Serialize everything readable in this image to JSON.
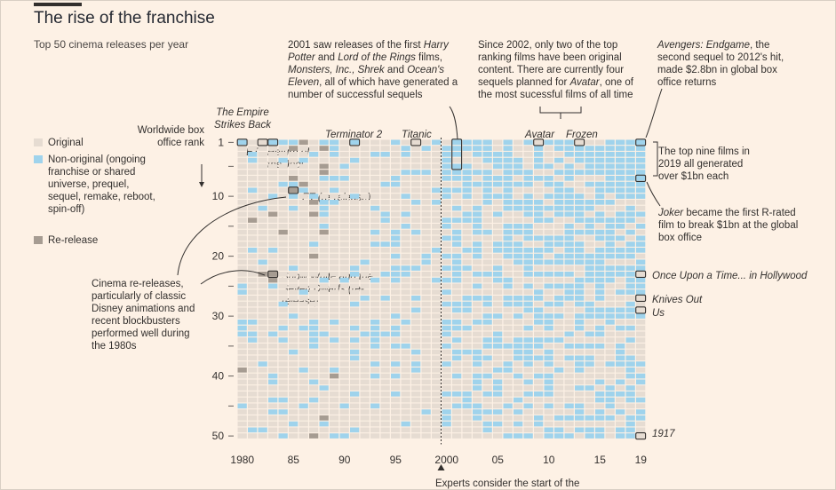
{
  "title": "The rise of the franchise",
  "subtitle": "Top 50 cinema releases per year",
  "legend": {
    "items": [
      {
        "label": "Original",
        "color": "#e6dcd2"
      },
      {
        "label": "Non-original (ongoing franchise or shared universe, prequel, sequel, remake, reboot, spin-off)",
        "color": "#9fd3ec"
      },
      {
        "label": "Re-release",
        "color": "#a69c92"
      }
    ]
  },
  "annotations": {
    "rank_axis_title": "Worldwide box office rank",
    "note_2001": {
      "p1": "2001 saw releases of the first ",
      "i1": "Harry Potter",
      "p2": " and ",
      "i2": "Lord of the Rings",
      "p3": " films, ",
      "i3": "Monsters, Inc., Shrek",
      "p4": " and ",
      "i4": "Ocean's Eleven",
      "p5": ", all of which have generated a number of successful sequels"
    },
    "note_2002": {
      "p1": "Since 2002, only two of the top ranking films have been original content. There are currently four sequels planned for ",
      "i1": "Avatar",
      "p2": ", one of the most sucessful films of all time"
    },
    "note_endgame": {
      "i1": "Avengers: Endgame",
      "p1": ", the second sequel to 2012's hit, made $2.8bn in global box office returns"
    },
    "note_top9": "The top nine films in 2019 all generated over $1bn each",
    "note_joker": {
      "i1": "Joker",
      "p1": " became the first R-rated film to break $1bn at the global box office"
    },
    "note_rereleases": "Cinema re-releases, particularly of classic Disney animations and recent blockbusters performed well during the 1980s",
    "footer": "Experts consider the start of the"
  },
  "film_labels": {
    "empire": "The Empire Strikes Back",
    "et": "ET",
    "jedi": "Return of the Jedi",
    "terminator": "Terminator 2",
    "titanic": "Titanic",
    "avatar": "Avatar",
    "frozen": "Frozen",
    "et_rerelease": "ET (re-release)",
    "snow_white": "Snow White and the Seven Dwarfs (re-release)",
    "once_upon": "Once Upon a Time... in Hollywood",
    "knives_out": "Knives Out",
    "us": "Us",
    "film_1917": "1917"
  },
  "chart_data": {
    "type": "heatmap",
    "title": "The rise of the franchise",
    "subtitle": "Top 50 cinema releases per year",
    "xlabel": "",
    "ylabel": "Worldwide box office rank",
    "x_range": [
      1980,
      2019
    ],
    "y_range": [
      1,
      50
    ],
    "x_tick_labels": [
      "1980",
      "85",
      "90",
      "95",
      "2000",
      "05",
      "10",
      "15",
      "19"
    ],
    "x_tick_years": [
      1980,
      1985,
      1990,
      1995,
      2000,
      2005,
      2010,
      2015,
      2019
    ],
    "y_tick_labels": [
      "1",
      "10",
      "20",
      "30",
      "40",
      "50"
    ],
    "y_ticks": [
      1,
      5,
      10,
      15,
      20,
      25,
      30,
      35,
      40,
      45,
      50
    ],
    "categories": [
      "Original",
      "Non-original",
      "Re-release"
    ],
    "colors": {
      "Original": "#e6dcd2",
      "Non-original": "#9fd3ec",
      "Re-release": "#a69c92"
    },
    "cells_note": "Grid of 40 years x 50 ranks; each cell is categorised as Original, Non-original or Re-release.",
    "notable_films": [
      {
        "film": "The Empire Strikes Back",
        "year": 1980,
        "rank": 1,
        "category": "Non-original"
      },
      {
        "film": "ET",
        "year": 1982,
        "rank": 1,
        "category": "Original"
      },
      {
        "film": "Return of the Jedi",
        "year": 1983,
        "rank": 1,
        "category": "Non-original"
      },
      {
        "film": "ET (re-release)",
        "year": 1985,
        "rank": 9,
        "category": "Re-release"
      },
      {
        "film": "Snow White and the Seven Dwarfs (re-release)",
        "year": 1983,
        "rank": 23,
        "category": "Re-release"
      },
      {
        "film": "Terminator 2",
        "year": 1991,
        "rank": 1,
        "category": "Non-original"
      },
      {
        "film": "Titanic",
        "year": 1997,
        "rank": 1,
        "category": "Original"
      },
      {
        "film": "Harry Potter and the Sorcerer's Stone",
        "year": 2001,
        "rank": 1,
        "category": "Non-original"
      },
      {
        "film": "Avatar",
        "year": 2009,
        "rank": 1,
        "category": "Original"
      },
      {
        "film": "Frozen",
        "year": 2013,
        "rank": 1,
        "category": "Original"
      },
      {
        "film": "Avengers: Endgame",
        "year": 2019,
        "rank": 1,
        "category": "Non-original"
      },
      {
        "film": "Joker",
        "year": 2019,
        "rank": 7,
        "category": "Non-original"
      },
      {
        "film": "Once Upon a Time... in Hollywood",
        "year": 2019,
        "rank": 23,
        "category": "Original"
      },
      {
        "film": "Knives Out",
        "year": 2019,
        "rank": 27,
        "category": "Original"
      },
      {
        "film": "Us",
        "year": 2019,
        "rank": 29,
        "category": "Original"
      },
      {
        "film": "1917",
        "year": 2019,
        "rank": 50,
        "category": "Original"
      }
    ],
    "reference_line": {
      "year": 2000,
      "style": "dotted"
    }
  }
}
